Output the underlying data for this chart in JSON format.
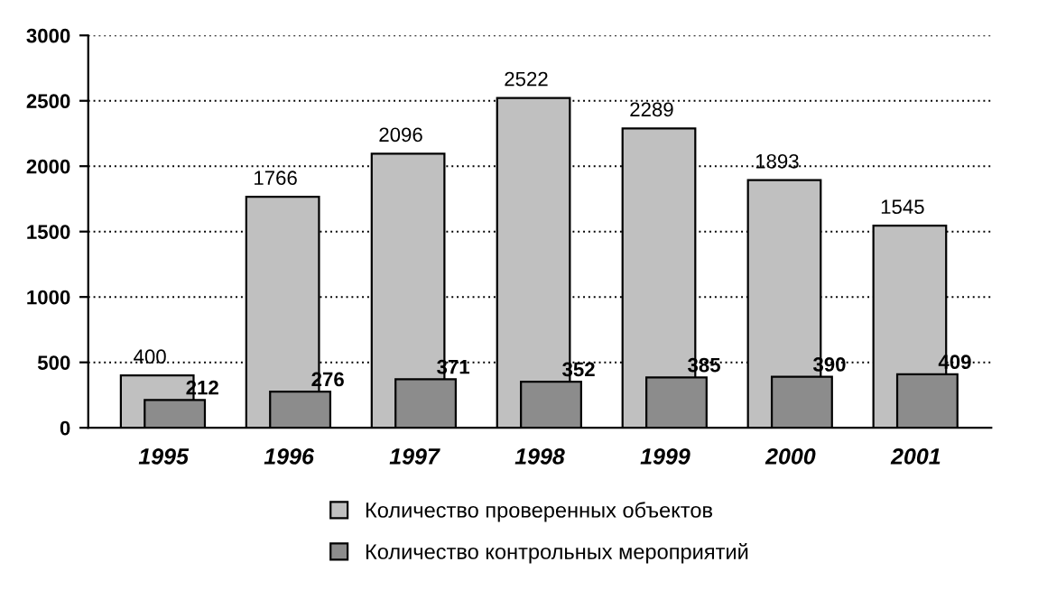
{
  "chart_data": {
    "type": "bar",
    "categories": [
      "1995",
      "1996",
      "1997",
      "1998",
      "1999",
      "2000",
      "2001"
    ],
    "series": [
      {
        "name": "Количество проверенных объектов",
        "color": "#c0c0c0",
        "values": [
          400,
          1766,
          2096,
          2522,
          2289,
          1893,
          1545
        ]
      },
      {
        "name": "Количество контрольных мероприятий",
        "color": "#8c8c8c",
        "values": [
          212,
          276,
          371,
          352,
          385,
          390,
          409
        ]
      }
    ],
    "ylim": [
      0,
      3000
    ],
    "yticks": [
      0,
      500,
      1000,
      1500,
      2000,
      2500,
      3000
    ],
    "grid": "y",
    "legend": "bottom",
    "data_labels": true
  }
}
